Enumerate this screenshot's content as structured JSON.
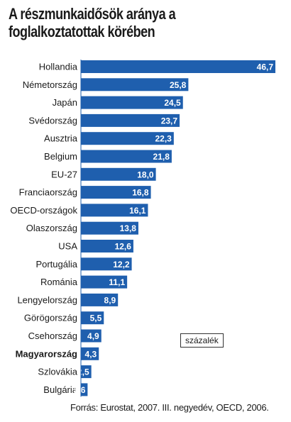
{
  "title_line1": "A részmunkaidősök aránya a",
  "title_line2": "foglalkoztatottak körében",
  "unit_label": "százalék",
  "source": "Forrás: Eurostat, 2007. III. negyedév, OECD, 2006.",
  "colors": {
    "bar": "#1f5fae",
    "value_text": "#ffffff"
  },
  "chart_data": {
    "type": "bar",
    "orientation": "horizontal",
    "title": "A részmunkaidősök aránya a foglalkoztatottak körében",
    "unit": "százalék",
    "categories": [
      "Hollandia",
      "Németország",
      "Japán",
      "Svédország",
      "Ausztria",
      "Belgium",
      "EU-27",
      "Franciaország",
      "OECD-országok",
      "Olaszország",
      "USA",
      "Portugália",
      "Románia",
      "Lengyelország",
      "Görögország",
      "Csehország",
      "Magyarország",
      "Szlovákia",
      "Bulgária"
    ],
    "value_labels": [
      "46,7",
      "25,8",
      "24,5",
      "23,7",
      "22,3",
      "21,8",
      "18,0",
      "16,8",
      "16,1",
      "13,8",
      "12,6",
      "12,2",
      "11,1",
      "8,9",
      "5,5",
      "4,9",
      "4,3",
      "2,5",
      "1,6"
    ],
    "values": [
      46.7,
      25.8,
      24.5,
      23.7,
      22.3,
      21.8,
      18.0,
      16.8,
      16.1,
      13.8,
      12.6,
      12.2,
      11.1,
      8.9,
      5.5,
      4.9,
      4.3,
      2.5,
      1.6
    ],
    "highlight": "Magyarország"
  }
}
